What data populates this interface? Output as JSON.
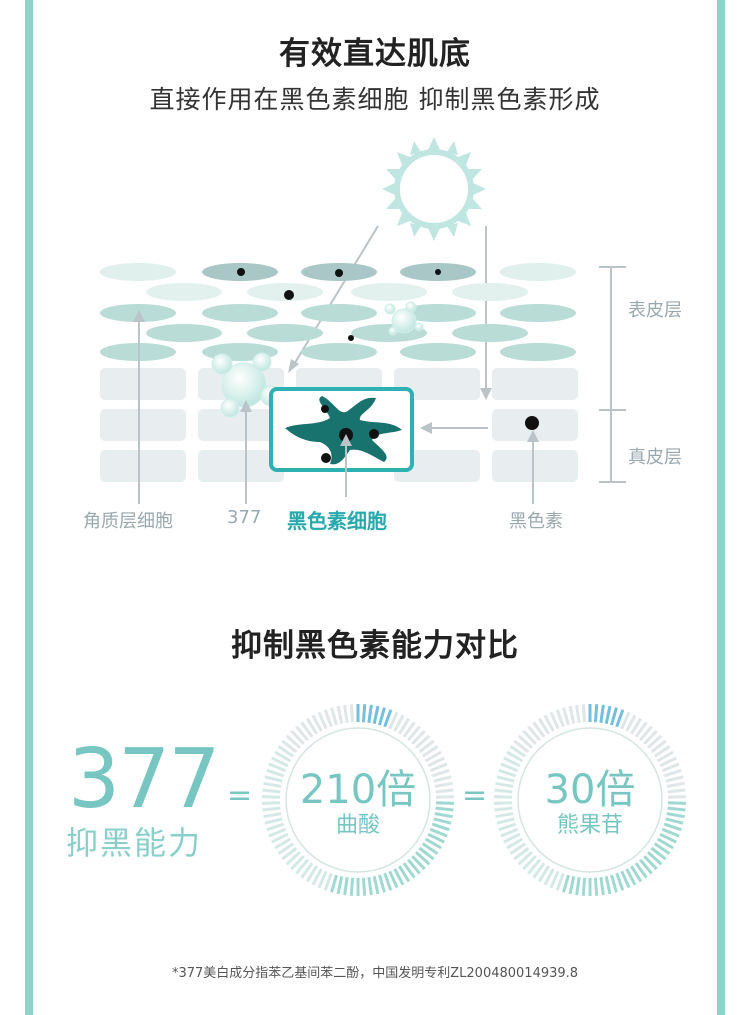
{
  "header": {
    "title": "有效直达肌底",
    "subtitle": "直接作用在黑色素细胞 抑制黑色素形成"
  },
  "diagram": {
    "side_labels": {
      "epidermis": "表皮层",
      "dermis": "真皮层"
    },
    "bottom_labels": {
      "keratinocyte": "角质层细胞",
      "ingredient": "377",
      "melanocyte": "黑色素细胞",
      "melanin": "黑色素"
    },
    "colors": {
      "accent": "#27a9ad",
      "cell": "#18736f",
      "layer": "#cfe7e3"
    }
  },
  "compare": {
    "title": "抑制黑色素能力对比",
    "main_value": "377",
    "main_label": "抑黑能力",
    "eq1": "=",
    "eq2": "=",
    "ring1": {
      "value": "210倍",
      "name": "曲酸"
    },
    "ring2": {
      "value": "30倍",
      "name": "熊果苷"
    }
  },
  "footnote": "*377美白成分指苯乙基间苯二酚，中国发明专利ZL200480014939.8"
}
